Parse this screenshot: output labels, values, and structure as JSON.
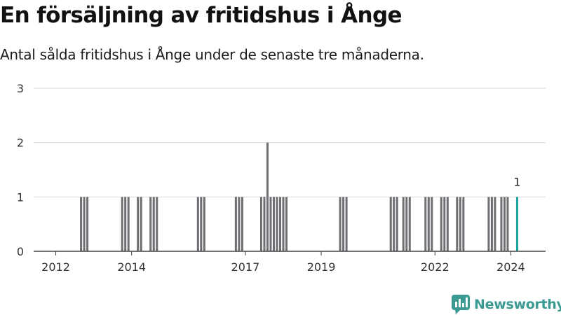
{
  "title": "En försäljning av fritidshus i Ånge",
  "subtitle": "Antal sålda fritidshus i Ånge under de senaste tre månaderna.",
  "brand": {
    "name": "Newsworthy",
    "color": "#3a9a92",
    "icon": "bar-chart-speech-bubble-icon"
  },
  "chart_data": {
    "type": "bar",
    "ylim": [
      0,
      3
    ],
    "yticks": [
      0,
      1,
      2,
      3
    ],
    "xlim": [
      "2011-06",
      "2024-12"
    ],
    "xticks": [
      "2012",
      "2014",
      "2017",
      "2019",
      "2022",
      "2024"
    ],
    "grid": true,
    "bar_color": "#6e6e73",
    "highlight_color": "#1aa39a",
    "highlight_label": "1",
    "x": [
      "2012-09",
      "2012-10",
      "2012-11",
      "2013-10",
      "2013-11",
      "2013-12",
      "2014-03",
      "2014-04",
      "2014-07",
      "2014-08",
      "2014-09",
      "2015-10",
      "2015-11",
      "2015-12",
      "2016-10",
      "2016-11",
      "2016-12",
      "2017-06",
      "2017-07",
      "2017-08",
      "2017-09",
      "2017-10",
      "2017-11",
      "2017-12",
      "2018-01",
      "2018-02",
      "2019-07",
      "2019-08",
      "2019-09",
      "2020-11",
      "2020-12",
      "2021-01",
      "2021-03",
      "2021-04",
      "2021-05",
      "2021-10",
      "2021-11",
      "2021-12",
      "2022-03",
      "2022-04",
      "2022-05",
      "2022-08",
      "2022-09",
      "2022-10",
      "2023-06",
      "2023-07",
      "2023-08",
      "2023-10",
      "2023-11",
      "2023-12",
      "2024-03"
    ],
    "values": [
      1,
      1,
      1,
      1,
      1,
      1,
      1,
      1,
      1,
      1,
      1,
      1,
      1,
      1,
      1,
      1,
      1,
      1,
      1,
      2,
      1,
      1,
      1,
      1,
      1,
      1,
      1,
      1,
      1,
      1,
      1,
      1,
      1,
      1,
      1,
      1,
      1,
      1,
      1,
      1,
      1,
      1,
      1,
      1,
      1,
      1,
      1,
      1,
      1,
      1,
      1
    ]
  }
}
